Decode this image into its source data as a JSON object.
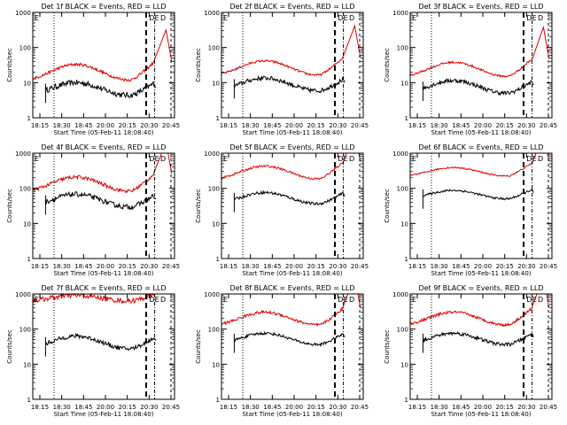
{
  "layout": "3x3",
  "colors": {
    "events": "#000000",
    "lld": "#e00000",
    "axes": "#000000",
    "background": "#ffffff"
  },
  "common": {
    "xlabel": "Start Time (05-Feb-11 18:08:40)",
    "ylabel": "Counts/sec",
    "xtick_labels": [
      "18:15",
      "18:30",
      "18:45",
      "20:00",
      "20:15",
      "20:30",
      "20:45"
    ],
    "ytick_labels": [
      "1",
      "10",
      "100",
      "1000"
    ],
    "y_scale": "log",
    "ylim": [
      1,
      1000
    ]
  },
  "chart_data": [
    {
      "type": "line",
      "title": "Det 1f BLACK = Events, RED = LLD",
      "corner_labels": [
        "E",
        "D",
        "E",
        "D"
      ],
      "series": [
        {
          "name": "BLACK = Events",
          "color": "#000000",
          "start": 0.09,
          "level": 0.82,
          "wave": 0.18,
          "noise": 0.08,
          "end_rise": 0.35
        },
        {
          "name": "RED = LLD",
          "color": "#e00000",
          "start": 0.0,
          "level": 1.3,
          "wave": 0.22,
          "noise": 0.04,
          "end_rise": 0.6
        }
      ]
    },
    {
      "type": "line",
      "title": "Det 2f BLACK = Events, RED = LLD",
      "corner_labels": [
        "E",
        "D",
        "E",
        "D"
      ],
      "series": [
        {
          "name": "BLACK = Events",
          "color": "#000000",
          "start": 0.09,
          "level": 0.95,
          "wave": 0.18,
          "noise": 0.06,
          "end_rise": 0.3
        },
        {
          "name": "RED = LLD",
          "color": "#e00000",
          "start": 0.0,
          "level": 1.42,
          "wave": 0.2,
          "noise": 0.03,
          "end_rise": 0.6
        }
      ]
    },
    {
      "type": "line",
      "title": "Det 3f BLACK = Events, RED = LLD",
      "corner_labels": [
        "E",
        "D",
        "E",
        "D"
      ],
      "series": [
        {
          "name": "BLACK = Events",
          "color": "#000000",
          "start": 0.09,
          "level": 0.88,
          "wave": 0.18,
          "noise": 0.06,
          "end_rise": 0.3
        },
        {
          "name": "RED = LLD",
          "color": "#e00000",
          "start": 0.0,
          "level": 1.38,
          "wave": 0.2,
          "noise": 0.03,
          "end_rise": 0.6
        }
      ]
    },
    {
      "type": "line",
      "title": "Det 4f BLACK = Events, RED = LLD",
      "corner_labels": [
        "E",
        "D",
        "E",
        "D"
      ],
      "series": [
        {
          "name": "BLACK = Events",
          "color": "#000000",
          "start": 0.09,
          "level": 1.65,
          "wave": 0.18,
          "noise": 0.07,
          "end_rise": 0.3
        },
        {
          "name": "RED = LLD",
          "color": "#e00000",
          "start": 0.0,
          "level": 2.12,
          "wave": 0.2,
          "noise": 0.05,
          "end_rise": 0.6
        }
      ]
    },
    {
      "type": "line",
      "title": "Det 5f BLACK = Events, RED = LLD",
      "corner_labels": [
        "E",
        "D",
        "E",
        "D"
      ],
      "series": [
        {
          "name": "BLACK = Events",
          "color": "#000000",
          "start": 0.09,
          "level": 1.72,
          "wave": 0.16,
          "noise": 0.04,
          "end_rise": 0.3
        },
        {
          "name": "RED = LLD",
          "color": "#e00000",
          "start": 0.0,
          "level": 2.45,
          "wave": 0.18,
          "noise": 0.03,
          "end_rise": 0.6
        }
      ]
    },
    {
      "type": "line",
      "title": "Det 6f BLACK = Events, RED = LLD",
      "corner_labels": [
        "E",
        "D",
        "E",
        "D"
      ],
      "series": [
        {
          "name": "BLACK = Events",
          "color": "#000000",
          "start": 0.09,
          "level": 1.82,
          "wave": 0.12,
          "noise": 0.03,
          "end_rise": 0.3
        },
        {
          "name": "RED = LLD",
          "color": "#e00000",
          "start": 0.0,
          "level": 2.47,
          "wave": 0.12,
          "noise": 0.02,
          "end_rise": 0.5
        }
      ]
    },
    {
      "type": "line",
      "title": "Det 7f BLACK = Events, RED = LLD",
      "corner_labels": [
        "E",
        "D",
        "E",
        "D"
      ],
      "series": [
        {
          "name": "BLACK = Events",
          "color": "#000000",
          "start": 0.09,
          "level": 1.62,
          "wave": 0.18,
          "noise": 0.06,
          "end_rise": 0.3
        },
        {
          "name": "RED = LLD",
          "color": "#e00000",
          "start": 0.0,
          "level": 2.88,
          "wave": 0.08,
          "noise": 0.07,
          "end_rise": 0.2
        }
      ]
    },
    {
      "type": "line",
      "title": "Det 8f BLACK = Events, RED = LLD",
      "corner_labels": [
        "E",
        "D",
        "E",
        "D"
      ],
      "series": [
        {
          "name": "BLACK = Events",
          "color": "#000000",
          "start": 0.09,
          "level": 1.72,
          "wave": 0.16,
          "noise": 0.04,
          "end_rise": 0.3
        },
        {
          "name": "RED = LLD",
          "color": "#e00000",
          "start": 0.0,
          "level": 2.3,
          "wave": 0.18,
          "noise": 0.04,
          "end_rise": 0.6
        }
      ]
    },
    {
      "type": "line",
      "title": "Det 9f BLACK = Events, RED = LLD",
      "corner_labels": [
        "E",
        "D",
        "E",
        "D"
      ],
      "series": [
        {
          "name": "BLACK = Events",
          "color": "#000000",
          "start": 0.09,
          "level": 1.72,
          "wave": 0.16,
          "noise": 0.05,
          "end_rise": 0.3
        },
        {
          "name": "RED = LLD",
          "color": "#e00000",
          "start": 0.0,
          "level": 2.3,
          "wave": 0.18,
          "noise": 0.04,
          "end_rise": 0.6
        }
      ]
    }
  ]
}
